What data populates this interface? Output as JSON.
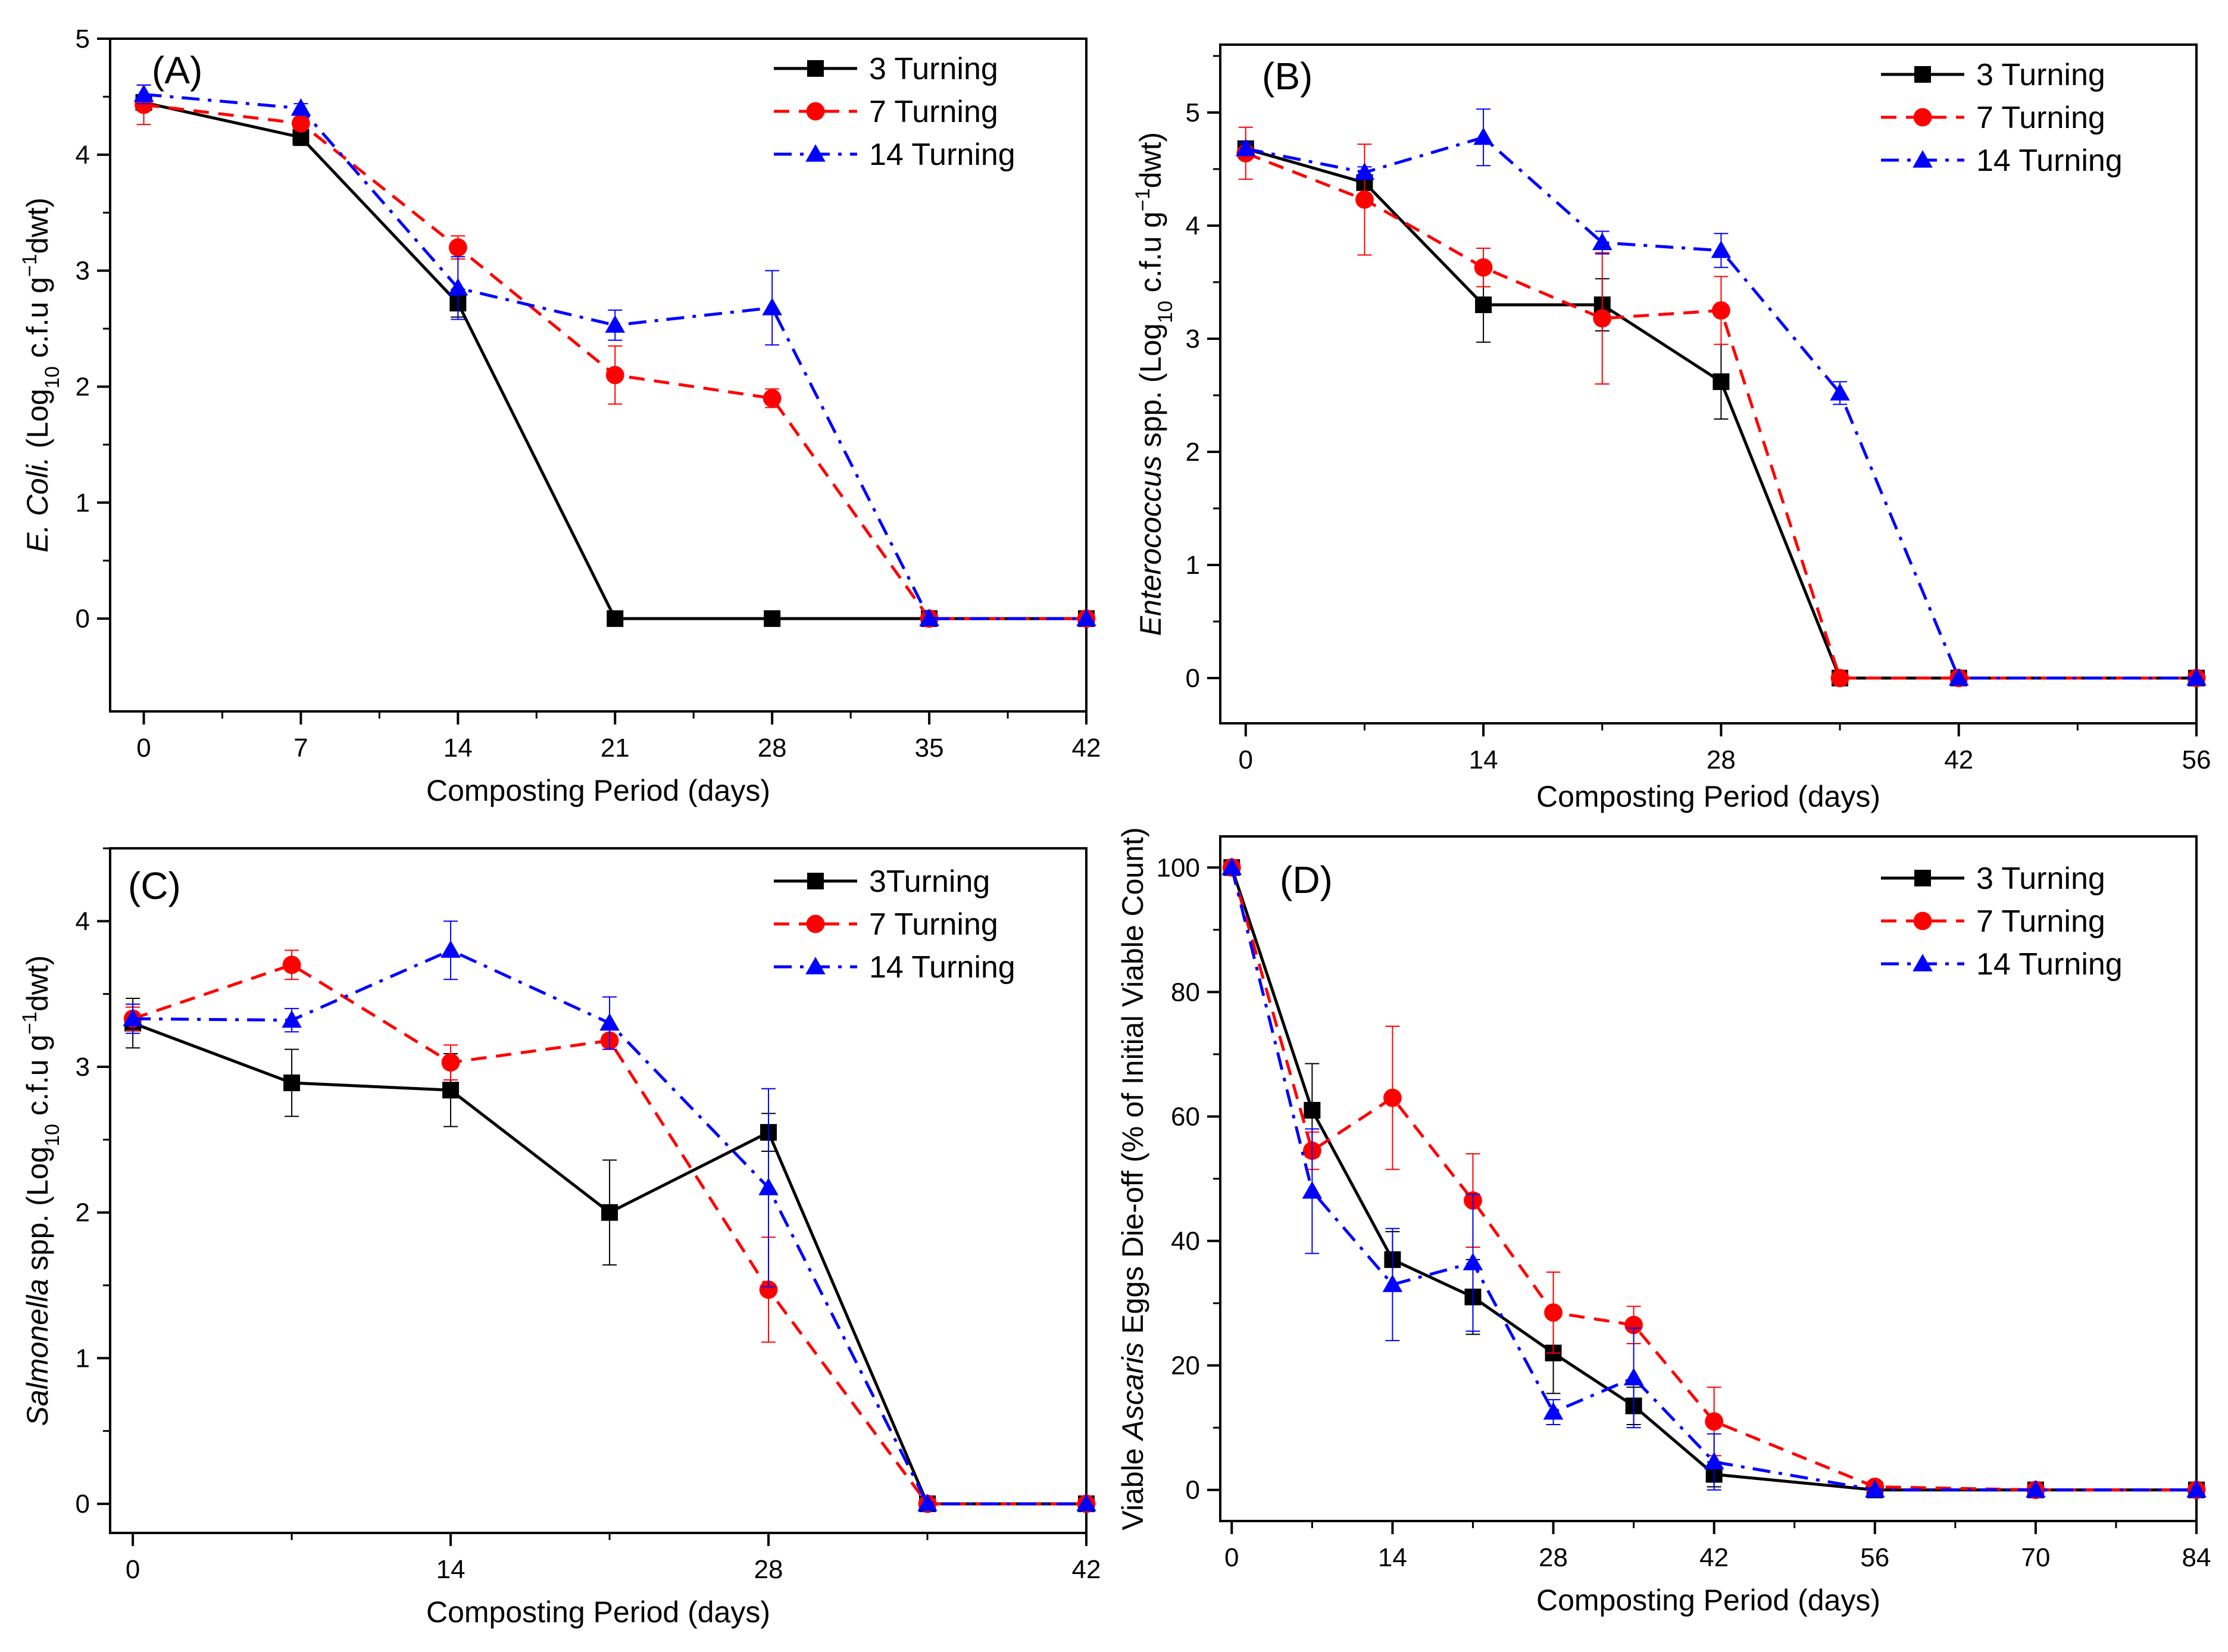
{
  "chart_data": [
    {
      "type": "line",
      "panel_label": "(A)",
      "xlabel": "Composting Period (days)",
      "ylabel": {
        "italic": "E. Coli.",
        "rest": " (Log",
        "sub": "10",
        "rest2": " c.f.u g",
        "sup": "−1",
        "rest3": "dwt)"
      },
      "xlim": [
        -1.5,
        42
      ],
      "ylim": [
        -0.8,
        5
      ],
      "xticks": [
        0,
        7,
        14,
        21,
        28,
        35,
        42
      ],
      "xticklabels": [
        "0",
        "7",
        "14",
        "21",
        "28",
        "35",
        "42"
      ],
      "yticks": [
        0,
        1,
        2,
        3,
        4,
        5
      ],
      "yticklabels": [
        "0",
        "1",
        "2",
        "3",
        "4",
        "5"
      ],
      "series": [
        {
          "name": "3 Turning",
          "color": "#000000",
          "marker": "square",
          "line": "solid",
          "x": [
            0,
            7,
            14,
            21,
            28,
            35,
            42
          ],
          "y": [
            4.45,
            4.15,
            2.72,
            0,
            0,
            0,
            0
          ],
          "err": [
            0.05,
            0.07,
            0.12,
            0,
            0,
            0,
            0
          ]
        },
        {
          "name": "7 Turning",
          "color": "#ff0000",
          "marker": "circle",
          "line": "dash",
          "x": [
            0,
            7,
            14,
            21,
            28,
            35,
            42
          ],
          "y": [
            4.43,
            4.27,
            3.2,
            2.1,
            1.9,
            0,
            0
          ],
          "err": [
            0.17,
            0.05,
            0.1,
            0.25,
            0.08,
            0,
            0
          ]
        },
        {
          "name": "14 Turning",
          "color": "#0000ff",
          "marker": "triangle",
          "line": "dashdot",
          "x": [
            0,
            7,
            14,
            21,
            28,
            35,
            42
          ],
          "y": [
            4.52,
            4.4,
            2.85,
            2.53,
            2.68,
            0,
            0
          ],
          "err": [
            0.08,
            0.04,
            0.27,
            0.13,
            0.32,
            0,
            0
          ]
        }
      ]
    },
    {
      "type": "line",
      "panel_label": "(B)",
      "xlabel": "Composting Period (days)",
      "ylabel": {
        "italic": "Enterococcus",
        "rest": " spp. (Log",
        "sub": "10",
        "rest2": " c.f.u g",
        "sup": "−1",
        "rest3": "dwt)"
      },
      "xlim": [
        -1.5,
        56
      ],
      "ylim": [
        -0.4,
        5.6
      ],
      "xticks": [
        0,
        14,
        28,
        42,
        56
      ],
      "xticklabels": [
        "0",
        "14",
        "28",
        "42",
        "56"
      ],
      "yticks": [
        0,
        1,
        2,
        3,
        4,
        5
      ],
      "yticklabels": [
        "0",
        "1",
        "2",
        "3",
        "4",
        "5"
      ],
      "series": [
        {
          "name": "3 Turning",
          "color": "#000000",
          "marker": "square",
          "line": "solid",
          "x": [
            0,
            7,
            14,
            21,
            28,
            35,
            42,
            56
          ],
          "y": [
            4.68,
            4.38,
            3.3,
            3.3,
            2.62,
            0,
            0,
            0
          ],
          "err": [
            0.05,
            0.1,
            0.33,
            0.23,
            0.33,
            0,
            0,
            0
          ]
        },
        {
          "name": "7 Turning",
          "color": "#ff0000",
          "marker": "circle",
          "line": "dash",
          "x": [
            0,
            7,
            14,
            21,
            28,
            35,
            42,
            56
          ],
          "y": [
            4.64,
            4.23,
            3.63,
            3.18,
            3.25,
            0,
            0,
            0
          ],
          "err": [
            0.23,
            0.49,
            0.17,
            0.58,
            0.3,
            0,
            0,
            0
          ]
        },
        {
          "name": "14 Turning",
          "color": "#0000ff",
          "marker": "triangle",
          "line": "dashdot",
          "x": [
            0,
            7,
            14,
            21,
            28,
            35,
            42,
            56
          ],
          "y": [
            4.68,
            4.47,
            4.78,
            3.85,
            3.78,
            2.52,
            0,
            0
          ],
          "err": [
            0.05,
            0.05,
            0.25,
            0.1,
            0.15,
            0.1,
            0,
            0
          ]
        }
      ]
    },
    {
      "type": "line",
      "panel_label": "(C)",
      "xlabel": "Composting Period (days)",
      "ylabel": {
        "italic": "Salmonella",
        "rest": " spp. (Log",
        "sub": "10",
        "rest2": " c.f.u g",
        "sup": "−1",
        "rest3": "dwt)"
      },
      "xlim": [
        -1,
        42
      ],
      "ylim": [
        -0.2,
        4.5
      ],
      "xticks": [
        0,
        14,
        28,
        42
      ],
      "xticklabels": [
        "0",
        "14",
        "28",
        "42"
      ],
      "yticks": [
        0,
        1,
        2,
        3,
        4
      ],
      "yticklabels": [
        "0",
        "1",
        "2",
        "3",
        "4"
      ],
      "series": [
        {
          "name": "3Turning",
          "color": "#000000",
          "marker": "square",
          "line": "solid",
          "x": [
            0,
            7,
            14,
            21,
            28,
            35,
            42
          ],
          "y": [
            3.3,
            2.89,
            2.84,
            2.0,
            2.55,
            0,
            0
          ],
          "err": [
            0.17,
            0.23,
            0.25,
            0.36,
            0.13,
            0,
            0
          ]
        },
        {
          "name": "7 Turning",
          "color": "#ff0000",
          "marker": "circle",
          "line": "dash",
          "x": [
            0,
            7,
            14,
            21,
            28,
            35,
            42
          ],
          "y": [
            3.33,
            3.7,
            3.03,
            3.18,
            1.47,
            0,
            0
          ],
          "err": [
            0.08,
            0.1,
            0.12,
            0.04,
            0.36,
            0,
            0
          ]
        },
        {
          "name": "14 Turning",
          "color": "#0000ff",
          "marker": "triangle",
          "line": "dashdot",
          "x": [
            0,
            7,
            14,
            21,
            28,
            35,
            42
          ],
          "y": [
            3.33,
            3.32,
            3.8,
            3.3,
            2.17,
            0,
            0
          ],
          "err": [
            0.1,
            0.08,
            0.2,
            0.18,
            0.68,
            0,
            0
          ]
        }
      ]
    },
    {
      "type": "line",
      "panel_label": "(D)",
      "xlabel": "Composting Period (days)",
      "ylabel": {
        "pre": "Viable ",
        "italic": "Ascaris",
        "rest": " Eggs Die-off (% of Initial Viable Count)"
      },
      "xlim": [
        -1,
        84
      ],
      "ylim": [
        -5,
        105
      ],
      "xticks": [
        0,
        14,
        28,
        42,
        56,
        70,
        84
      ],
      "xticklabels": [
        "0",
        "14",
        "28",
        "42",
        "56",
        "70",
        "84"
      ],
      "yticks": [
        0,
        20,
        40,
        60,
        80,
        100
      ],
      "yticklabels": [
        "0",
        "20",
        "40",
        "60",
        "80",
        "100"
      ],
      "series": [
        {
          "name": "3 Turning",
          "color": "#000000",
          "marker": "square",
          "line": "solid",
          "x": [
            0,
            7,
            14,
            21,
            28,
            35,
            42,
            56,
            70,
            84
          ],
          "y": [
            100,
            61,
            37,
            31,
            22,
            13.5,
            2.5,
            0,
            0,
            0
          ],
          "err": [
            0,
            7.5,
            4.5,
            6,
            6.5,
            3,
            2,
            0,
            0,
            0
          ]
        },
        {
          "name": "7 Turning",
          "color": "#ff0000",
          "marker": "circle",
          "line": "dash",
          "x": [
            0,
            7,
            14,
            21,
            28,
            35,
            42,
            56,
            70,
            84
          ],
          "y": [
            100,
            54.5,
            63,
            46.5,
            28.5,
            26.5,
            11,
            0.5,
            0,
            0
          ],
          "err": [
            0,
            3,
            11.5,
            7.5,
            6.5,
            3,
            5.5,
            0,
            0,
            0
          ]
        },
        {
          "name": "14 Turning",
          "color": "#0000ff",
          "marker": "triangle",
          "line": "dashdot",
          "x": [
            0,
            7,
            14,
            21,
            28,
            35,
            42,
            56,
            70,
            84
          ],
          "y": [
            100,
            48,
            33,
            36.5,
            12.5,
            18,
            4.5,
            0,
            0,
            0
          ],
          "err": [
            0,
            10,
            9,
            11,
            2,
            8,
            4.5,
            0,
            0,
            0
          ]
        }
      ]
    }
  ]
}
